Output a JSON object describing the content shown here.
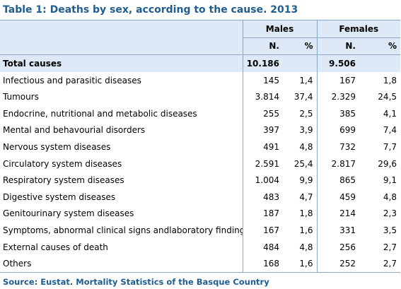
{
  "title": "Table 1: Deaths by sex, according to the cause. 2013",
  "headers": {
    "males": "Males",
    "females": "Females",
    "n": "N.",
    "pct": "%"
  },
  "total": {
    "label": "Total causes",
    "males_n": "10.186",
    "females_n": "9.506"
  },
  "rows": [
    {
      "label": "Infectious and parasitic diseases",
      "males_n": "145",
      "males_pct": "1,4",
      "females_n": "167",
      "females_pct": "1,8"
    },
    {
      "label": "Tumours",
      "males_n": "3.814",
      "males_pct": "37,4",
      "females_n": "2.329",
      "females_pct": "24,5"
    },
    {
      "label": "Endocrine, nutritional and metabolic diseases",
      "males_n": "255",
      "males_pct": "2,5",
      "females_n": "385",
      "females_pct": "4,1"
    },
    {
      "label": "Mental and behavourial disorders",
      "males_n": "397",
      "males_pct": "3,9",
      "females_n": "699",
      "females_pct": "7,4"
    },
    {
      "label": "Nervous system diseases",
      "males_n": "491",
      "males_pct": "4,8",
      "females_n": "732",
      "females_pct": "7,7"
    },
    {
      "label": "Circulatory system diseases",
      "males_n": "2.591",
      "males_pct": "25,4",
      "females_n": "2.817",
      "females_pct": "29,6"
    },
    {
      "label": "Respiratory system diseases",
      "males_n": "1.004",
      "males_pct": "9,9",
      "females_n": "865",
      "females_pct": "9,1"
    },
    {
      "label": "Digestive system diseases",
      "males_n": "483",
      "males_pct": "4,7",
      "females_n": "459",
      "females_pct": "4,8"
    },
    {
      "label": "Genitourinary system diseases",
      "males_n": "187",
      "males_pct": "1,8",
      "females_n": "214",
      "females_pct": "2,3"
    },
    {
      "label": "Symptoms, abnormal clinical signs andlaboratory findings",
      "males_n": "167",
      "males_pct": "1,6",
      "females_n": "331",
      "females_pct": "3,5"
    },
    {
      "label": "External causes of death",
      "males_n": "484",
      "males_pct": "4,8",
      "females_n": "256",
      "females_pct": "2,7"
    },
    {
      "label": "Others",
      "males_n": "168",
      "males_pct": "1,6",
      "females_n": "252",
      "females_pct": "2,7"
    }
  ],
  "source": "Source: Eustat. Mortality Statistics of the Basque Country"
}
